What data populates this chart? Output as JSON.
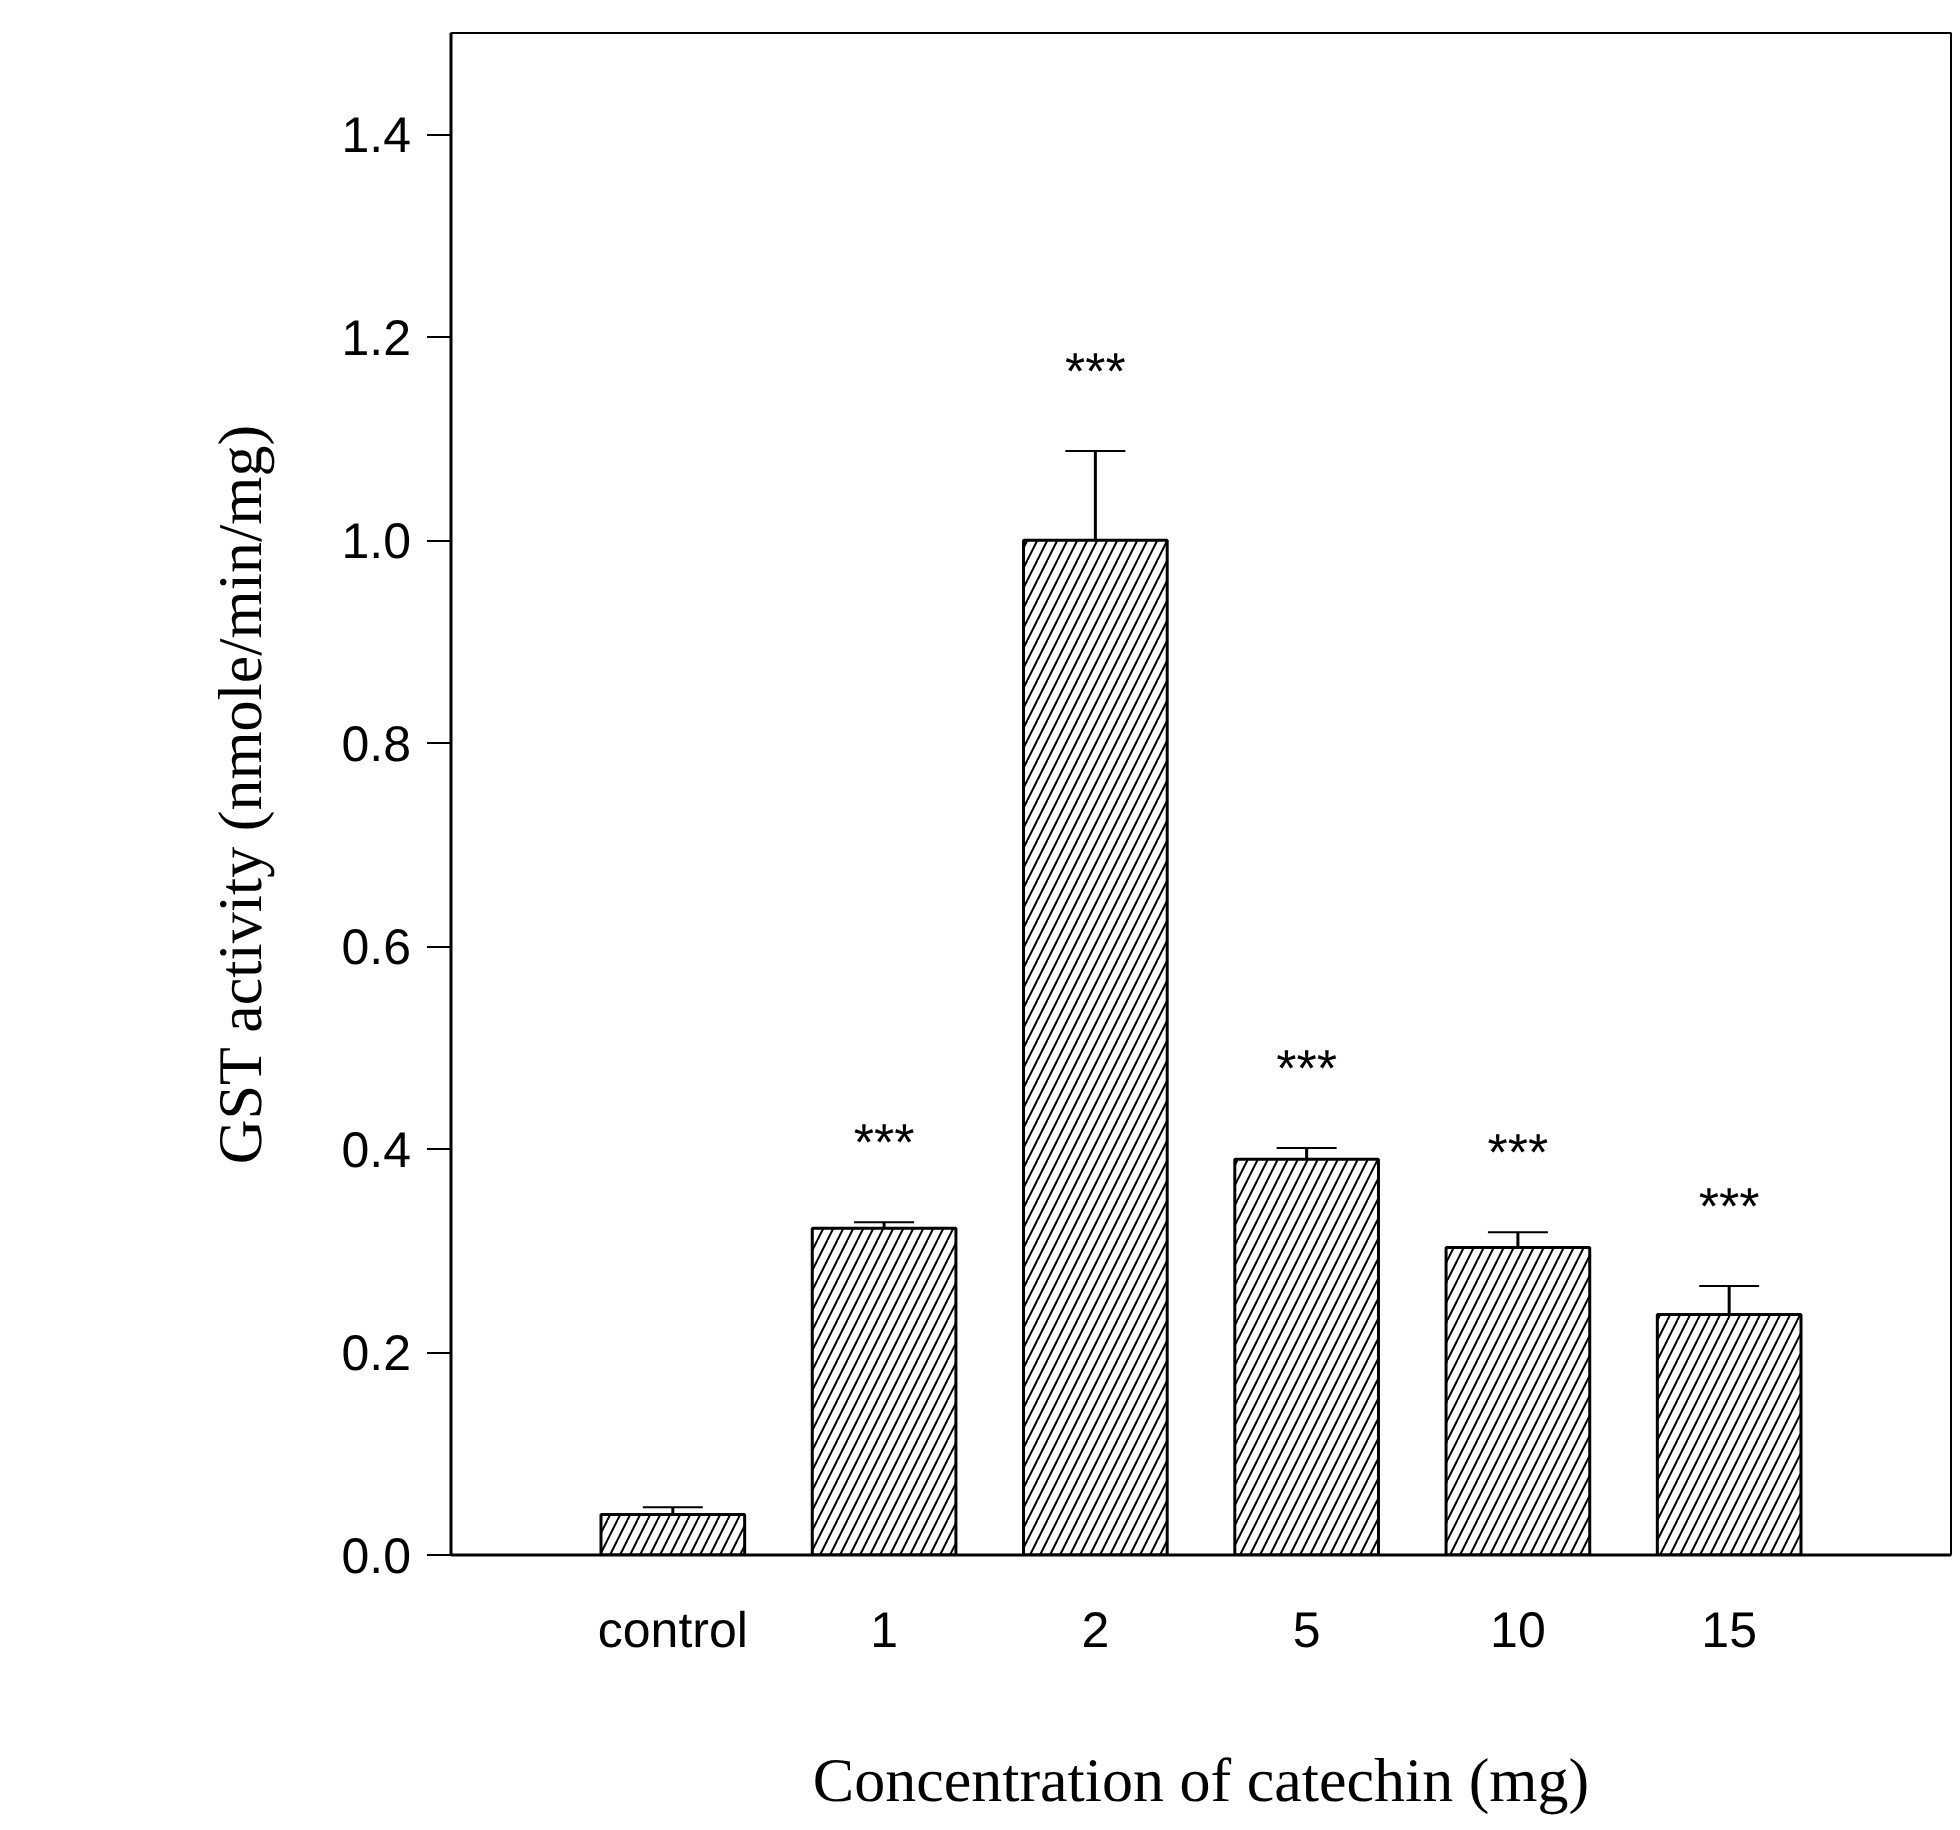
{
  "chart_data": {
    "type": "bar",
    "xlabel": "Concentration of catechin (mg)",
    "ylabel": "GST activity (nmole/min/mg)",
    "categories": [
      "control",
      "1",
      "2",
      "5",
      "10",
      "15"
    ],
    "values": [
      0.04,
      0.322,
      1.0,
      0.39,
      0.303,
      0.237
    ],
    "errors": [
      0.007,
      0.006,
      0.088,
      0.011,
      0.015,
      0.028
    ],
    "color": "#ffffff",
    "ylim": [
      0,
      1.5
    ],
    "yticks": [
      {
        "value": 0,
        "label": "0.0"
      },
      0.2,
      0.4,
      0.6,
      0.8,
      {
        "value": 1,
        "label": "1.0"
      },
      1.2,
      1.4
    ],
    "grid": false,
    "annotations": [
      "***",
      "***",
      "***",
      "***",
      "***"
    ]
  }
}
